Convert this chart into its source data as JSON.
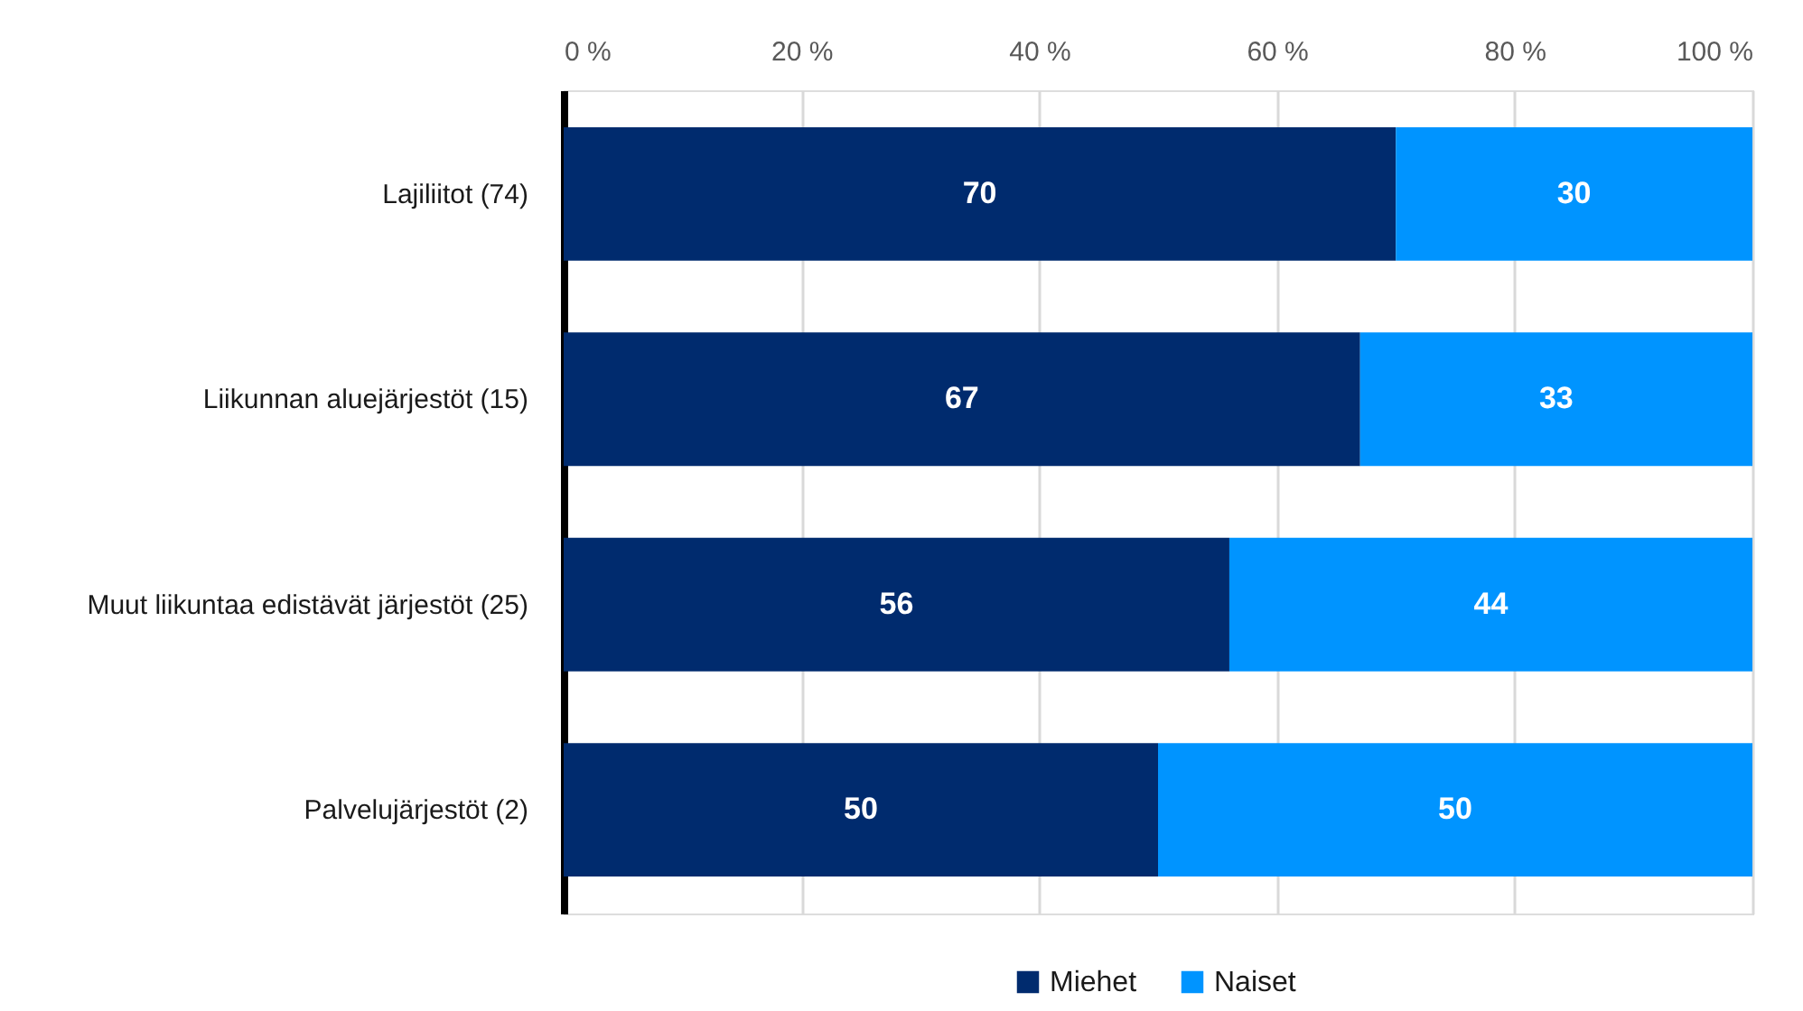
{
  "chart_data": {
    "type": "bar",
    "orientation": "horizontal",
    "stacked": true,
    "categories": [
      "Lajiliitot (74)",
      "Liikunnan aluejärjestöt (15)",
      "Muut liikuntaa edistävät järjestöt (25)",
      "Palvelujärjestöt (2)"
    ],
    "series": [
      {
        "name": "Miehet",
        "color": "#002b6e",
        "values": [
          70,
          67,
          56,
          50
        ]
      },
      {
        "name": "Naiset",
        "color": "#0094ff",
        "values": [
          30,
          33,
          44,
          50
        ]
      }
    ],
    "xlim": [
      0,
      100
    ],
    "xticks": [
      {
        "value": 0,
        "label": "0 %"
      },
      {
        "value": 20,
        "label": "20 %"
      },
      {
        "value": 40,
        "label": "40 %"
      },
      {
        "value": 60,
        "label": "60 %"
      },
      {
        "value": 80,
        "label": "80 %"
      },
      {
        "value": 100,
        "label": "100 %"
      }
    ],
    "grid": "x",
    "legend": "bottom",
    "data_labels": true
  }
}
